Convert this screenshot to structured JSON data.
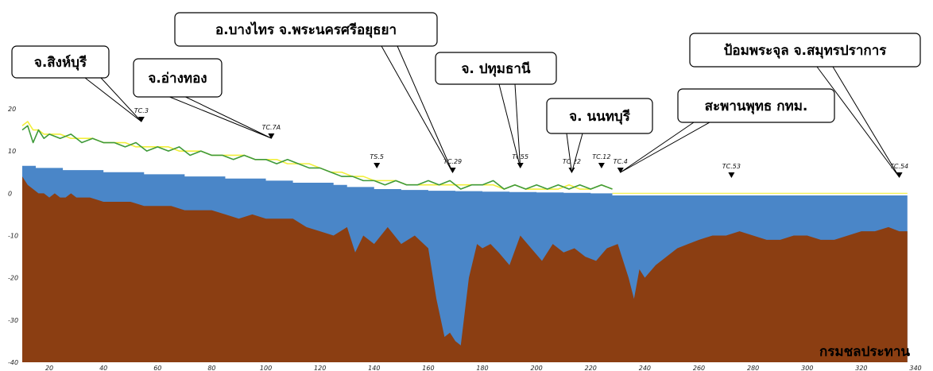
{
  "chart_data": {
    "type": "area",
    "xlim": [
      10,
      340
    ],
    "ylim": [
      -40,
      20
    ],
    "x_ticks": [
      20,
      40,
      60,
      80,
      100,
      120,
      140,
      160,
      180,
      200,
      220,
      240,
      260,
      280,
      300,
      320,
      340
    ],
    "x_tick_labels": [
      "20",
      "40",
      "60",
      "80",
      "100",
      "120",
      "140",
      "160",
      "180",
      "200",
      "220",
      "240",
      "260",
      "280",
      "300",
      "320",
      "340"
    ],
    "y_ticks": [
      20,
      10,
      0,
      -10,
      -20,
      -30,
      -40
    ],
    "y_tick_labels": [
      "20",
      "10",
      "0",
      "-10",
      "-20",
      "-30",
      "-40"
    ],
    "colors": {
      "water": "#4a86c8",
      "riverbed": "#8b3e12",
      "level_green": "#3f9a3a",
      "level_yellow": "#f2ef3c"
    },
    "series": [
      {
        "x": [
          10,
          15,
          15,
          25,
          25,
          40,
          40,
          55,
          55,
          70,
          70,
          85,
          85,
          100,
          100,
          110,
          110,
          125,
          125,
          130,
          130,
          140,
          140,
          150,
          150,
          160,
          160,
          170,
          170,
          180,
          180,
          190,
          190,
          200,
          200,
          210,
          210,
          220,
          220,
          228,
          228,
          235,
          235,
          245,
          245,
          260,
          260,
          280,
          280,
          300,
          300,
          320,
          320,
          337
        ],
        "values": [
          6.5,
          6.5,
          6.0,
          6.0,
          5.5,
          5.5,
          5.0,
          5.0,
          4.5,
          4.5,
          4.0,
          4.0,
          3.5,
          3.5,
          3.0,
          3.0,
          2.5,
          2.5,
          2.0,
          2.0,
          1.5,
          1.5,
          1.0,
          1.0,
          0.8,
          0.8,
          0.6,
          0.6,
          0.5,
          0.5,
          0.4,
          0.4,
          0.3,
          0.3,
          0.2,
          0.2,
          0.1,
          0.1,
          0.0,
          0.0,
          -0.5,
          -0.5,
          -0.5,
          -0.5,
          -0.5,
          -0.5,
          -0.5,
          -0.5,
          -0.5,
          -0.5,
          -0.5,
          -0.5,
          -0.5,
          -0.5
        ]
      },
      {
        "x": [
          10,
          12,
          14,
          16,
          18,
          20,
          22,
          24,
          26,
          28,
          30,
          35,
          40,
          45,
          50,
          55,
          60,
          65,
          70,
          75,
          80,
          85,
          90,
          95,
          100,
          105,
          110,
          115,
          120,
          125,
          130,
          133,
          136,
          140,
          145,
          150,
          155,
          160,
          163,
          166,
          168,
          170,
          172,
          175,
          178,
          180,
          183,
          186,
          190,
          194,
          198,
          202,
          206,
          210,
          214,
          218,
          222,
          226,
          230,
          234,
          236,
          238,
          240,
          244,
          248,
          252,
          256,
          260,
          265,
          270,
          275,
          280,
          285,
          290,
          295,
          300,
          305,
          310,
          315,
          320,
          325,
          330,
          334,
          337
        ],
        "values": [
          4,
          2,
          1,
          0,
          0,
          -1,
          0,
          -1,
          -1,
          0,
          -1,
          -1,
          -2,
          -2,
          -2,
          -3,
          -3,
          -3,
          -4,
          -4,
          -4,
          -5,
          -6,
          -5,
          -6,
          -6,
          -6,
          -8,
          -9,
          -10,
          -8,
          -14,
          -10,
          -12,
          -8,
          -12,
          -10,
          -13,
          -25,
          -34,
          -33,
          -35,
          -36,
          -20,
          -12,
          -13,
          -12,
          -14,
          -17,
          -10,
          -13,
          -16,
          -12,
          -14,
          -13,
          -15,
          -16,
          -13,
          -12,
          -20,
          -25,
          -18,
          -20,
          -17,
          -15,
          -13,
          -12,
          -11,
          -10,
          -10,
          -9,
          -10,
          -11,
          -11,
          -10,
          -10,
          -11,
          -11,
          -10,
          -9,
          -9,
          -8,
          -9,
          -9
        ]
      },
      {
        "x": [
          10,
          12,
          14,
          16,
          18,
          20,
          24,
          28,
          32,
          36,
          40,
          44,
          48,
          52,
          56,
          60,
          64,
          68,
          72,
          76,
          80,
          84,
          88,
          92,
          96,
          100,
          104,
          108,
          112,
          116,
          120,
          124,
          128,
          132,
          136,
          140,
          144,
          148,
          152,
          156,
          160,
          164,
          168,
          172,
          176,
          180,
          184,
          188,
          192,
          196,
          200,
          204,
          208,
          212,
          216,
          220,
          224,
          228
        ],
        "values": [
          15,
          16,
          12,
          15,
          13,
          14,
          13,
          14,
          12,
          13,
          12,
          12,
          11,
          12,
          10,
          11,
          10,
          11,
          9,
          10,
          9,
          9,
          8,
          9,
          8,
          8,
          7,
          8,
          7,
          6,
          6,
          5,
          4,
          4,
          3,
          3,
          2,
          3,
          2,
          2,
          3,
          2,
          3,
          1,
          2,
          2,
          3,
          1,
          2,
          1,
          2,
          1,
          2,
          1,
          2,
          1,
          2,
          1
        ]
      },
      {
        "x": [
          10,
          12,
          14,
          16,
          18,
          20,
          24,
          28,
          32,
          36,
          40,
          44,
          48,
          52,
          56,
          60,
          64,
          68,
          72,
          76,
          80,
          84,
          88,
          92,
          96,
          100,
          104,
          108,
          112,
          116,
          120,
          124,
          128,
          132,
          136,
          140,
          144,
          148,
          152,
          156,
          160,
          164,
          168,
          172,
          176,
          180,
          184,
          188,
          192,
          196,
          200,
          204,
          208,
          212,
          216,
          220,
          224,
          228
        ],
        "values": [
          16,
          17,
          15,
          15,
          14,
          14,
          14,
          13,
          13,
          13,
          12,
          12,
          12,
          11,
          11,
          11,
          11,
          10,
          10,
          10,
          9,
          9,
          9,
          9,
          8,
          8,
          8,
          7,
          7,
          7,
          6,
          5,
          5,
          4,
          4,
          3,
          3,
          3,
          2,
          2,
          2,
          2,
          2,
          2,
          2,
          2,
          2,
          1,
          2,
          1,
          1,
          1,
          1,
          2,
          1,
          1,
          2,
          1
        ]
      }
    ],
    "stations": [
      {
        "label": "TC.3",
        "x": 54
      },
      {
        "label": "TC.7A",
        "x": 102
      },
      {
        "label": "TS.5",
        "x": 141
      },
      {
        "label": "TC.29",
        "x": 169
      },
      {
        "label": "TC55",
        "x": 194
      },
      {
        "label": "TC.22",
        "x": 213
      },
      {
        "label": "TC.12",
        "x": 224
      },
      {
        "label": "TC.4",
        "x": 231
      },
      {
        "label": "TC.53",
        "x": 272
      },
      {
        "label": "TC.54",
        "x": 334
      }
    ],
    "annotations": [
      {
        "text": "จ.สิงห์บุรี",
        "station": "TC.3"
      },
      {
        "text": "จ.อ่างทอง",
        "station": "TC.7A"
      },
      {
        "text": "อ.บางไทร จ.พระนครศรีอยุธยา",
        "station": "TC.29"
      },
      {
        "text": "จ. ปทุมธานี",
        "station": "TC55"
      },
      {
        "text": "จ. นนทบุรี",
        "station": "TC.22"
      },
      {
        "text": "สะพานพุทธ กทม.",
        "station": "TC.4"
      },
      {
        "text": "ป้อมพระจุล จ.สมุทรปราการ",
        "station": "TC.54"
      }
    ],
    "credit": "กรมชลประทาน"
  }
}
